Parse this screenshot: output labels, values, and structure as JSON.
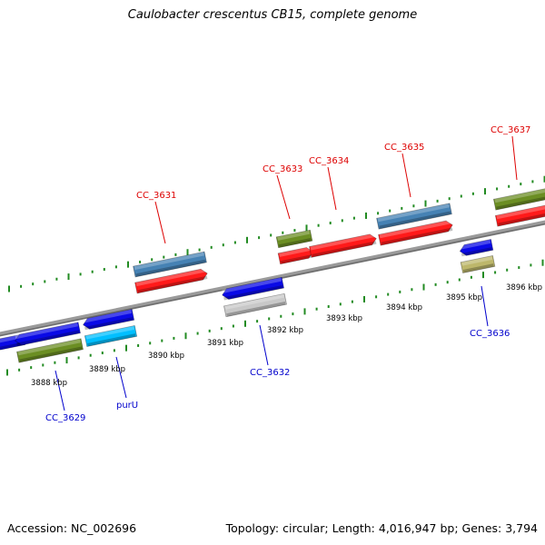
{
  "header": {
    "title": "Caulobacter crescentus CB15, complete genome"
  },
  "footer": {
    "accession": "Accession: NC_002696",
    "summary": "Topology: circular; Length: 4,016,947 bp; Genes: 3,794"
  },
  "colors": {
    "forward_label": "#dd0000",
    "reverse_label": "#0000cc",
    "backbone": "#888888",
    "tick": "#228b22",
    "feature_red": "#ff1a1a",
    "feature_steelblue": "#4682b4",
    "feature_olive": "#6b8e23",
    "feature_blue": "#0a0ae6",
    "feature_lightblue": "#00bfff",
    "feature_grey": "#c8c8c8",
    "feature_khaki": "#bdb76b"
  },
  "map": {
    "kbp_ticks": [
      {
        "label": "3888 kbp"
      },
      {
        "label": "3889 kbp"
      },
      {
        "label": "3890 kbp"
      },
      {
        "label": "3891 kbp"
      },
      {
        "label": "3892 kbp"
      },
      {
        "label": "3893 kbp"
      },
      {
        "label": "3894 kbp"
      },
      {
        "label": "3895 kbp"
      },
      {
        "label": "3896 kbp"
      }
    ],
    "forward_genes": [
      {
        "label": "CC_3631"
      },
      {
        "label": "CC_3633"
      },
      {
        "label": "CC_3634"
      },
      {
        "label": "CC_3635"
      },
      {
        "label": "CC_3637"
      }
    ],
    "reverse_genes": [
      {
        "label": "CC_3629"
      },
      {
        "label": "purU"
      },
      {
        "label": "CC_3632"
      },
      {
        "label": "CC_3636"
      }
    ]
  }
}
